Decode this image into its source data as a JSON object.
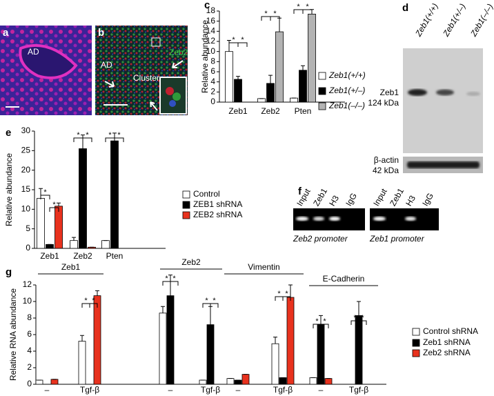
{
  "chart_data": [
    {
      "type": "bar",
      "panel": "c",
      "y_label": "Relative abundance",
      "categories": [
        "Zeb1",
        "Zeb2",
        "Pten"
      ],
      "series": [
        {
          "name": "Zeb1(+/+)",
          "color": "#ffffff",
          "values": [
            10,
            0.7,
            0.8
          ],
          "errors": [
            2.2,
            0,
            0
          ]
        },
        {
          "name": "Zeb1(+/–)",
          "color": "#000000",
          "values": [
            4.5,
            3.7,
            6.3
          ],
          "errors": [
            0.6,
            1.6,
            0.9
          ]
        },
        {
          "name": "Zeb1(–/–)",
          "color": "#b3b3b3",
          "values": [
            0,
            13.9,
            17.4
          ],
          "errors": [
            0,
            2.7,
            0.9
          ]
        }
      ],
      "ylim": [
        0,
        18
      ],
      "yticks": [
        0,
        2,
        4,
        6,
        8,
        10,
        12,
        14,
        16,
        18
      ],
      "annotations": [
        "*",
        "*",
        "*",
        "*",
        "*",
        "*"
      ]
    },
    {
      "type": "bar",
      "panel": "e",
      "y_label": "Relative abundance",
      "categories": [
        "Zeb1",
        "Zeb2",
        "Pten"
      ],
      "series": [
        {
          "name": "Control",
          "color": "#ffffff",
          "values": [
            12.8,
            2,
            2
          ],
          "errors": [
            2.5,
            0.8,
            0
          ]
        },
        {
          "name": "ZEB1 shRNA",
          "color": "#000000",
          "values": [
            1,
            25.5,
            27.5
          ],
          "errors": [
            0,
            3.5,
            2
          ]
        },
        {
          "name": "ZEB2 shRNA",
          "color": "#e8321e",
          "values": [
            10.8,
            0.3,
            0
          ],
          "errors": [
            0.8,
            0,
            0
          ]
        }
      ],
      "ylim": [
        0,
        30
      ],
      "yticks": [
        0,
        5,
        10,
        15,
        20,
        25,
        30
      ],
      "annotations": [
        "*",
        "*",
        "*",
        "*",
        "*",
        "*"
      ]
    },
    {
      "type": "bar",
      "panel": "g",
      "y_label": "Relative RNA abundance",
      "group_labels": [
        "Zeb1",
        "Zeb2",
        "Vimentin",
        "E-Cadherin"
      ],
      "categories": [
        "–",
        "Tgf-β",
        "–",
        "Tgf-β",
        "–",
        "Tgf-β",
        "–",
        "Tgf-β"
      ],
      "series": [
        {
          "name": "Control shRNA",
          "color": "#ffffff",
          "values": [
            0.5,
            5.2,
            8.6,
            0.5,
            0.7,
            4.9,
            0.8,
            0
          ],
          "errors": [
            0,
            0.7,
            0.8,
            0,
            0,
            0.8,
            0,
            0
          ]
        },
        {
          "name": "Zeb1 shRNA",
          "color": "#000000",
          "values": [
            0,
            0,
            10.7,
            7.2,
            0.5,
            0.8,
            7.2,
            8.3
          ],
          "errors": [
            0,
            0,
            2.5,
            2.2,
            0,
            0,
            1.1,
            1.7
          ]
        },
        {
          "name": "Zeb2 shRNA",
          "color": "#e8321e",
          "values": [
            0.6,
            10.7,
            0,
            0,
            1.2,
            10.5,
            0.7,
            0
          ],
          "errors": [
            0,
            0.6,
            0,
            0,
            0,
            1.5,
            0,
            0
          ]
        }
      ],
      "ylim": [
        0,
        12
      ],
      "yticks": [
        0,
        2,
        4,
        6,
        8,
        10,
        12
      ],
      "annotations": [
        "*",
        "*",
        "*",
        "*",
        "*",
        "*",
        "*",
        "*",
        "*",
        "*",
        "*",
        "*"
      ]
    }
  ],
  "panels": {
    "a": {
      "label": "a",
      "region": "AD"
    },
    "b": {
      "label": "b",
      "regions": [
        "AD",
        "Cluster"
      ],
      "stain": "Zeb2"
    },
    "d": {
      "label": "d",
      "lanes": [
        "Zeb1(+/+)",
        "Zeb1(+/–)",
        "Zeb1(–/–)"
      ],
      "blots": [
        {
          "name": "Zeb1",
          "size": "124 kDa"
        },
        {
          "name": "β-actin",
          "size": "42 kDa"
        }
      ]
    },
    "f": {
      "label": "f",
      "gels": [
        {
          "lanes": [
            "Input",
            "Zeb1",
            "H3",
            "IgG"
          ],
          "caption": "Zeb2 promoter"
        },
        {
          "lanes": [
            "Input",
            "Zeb1",
            "H3",
            "IgG"
          ],
          "caption": "Zeb1 promoter"
        }
      ]
    }
  }
}
